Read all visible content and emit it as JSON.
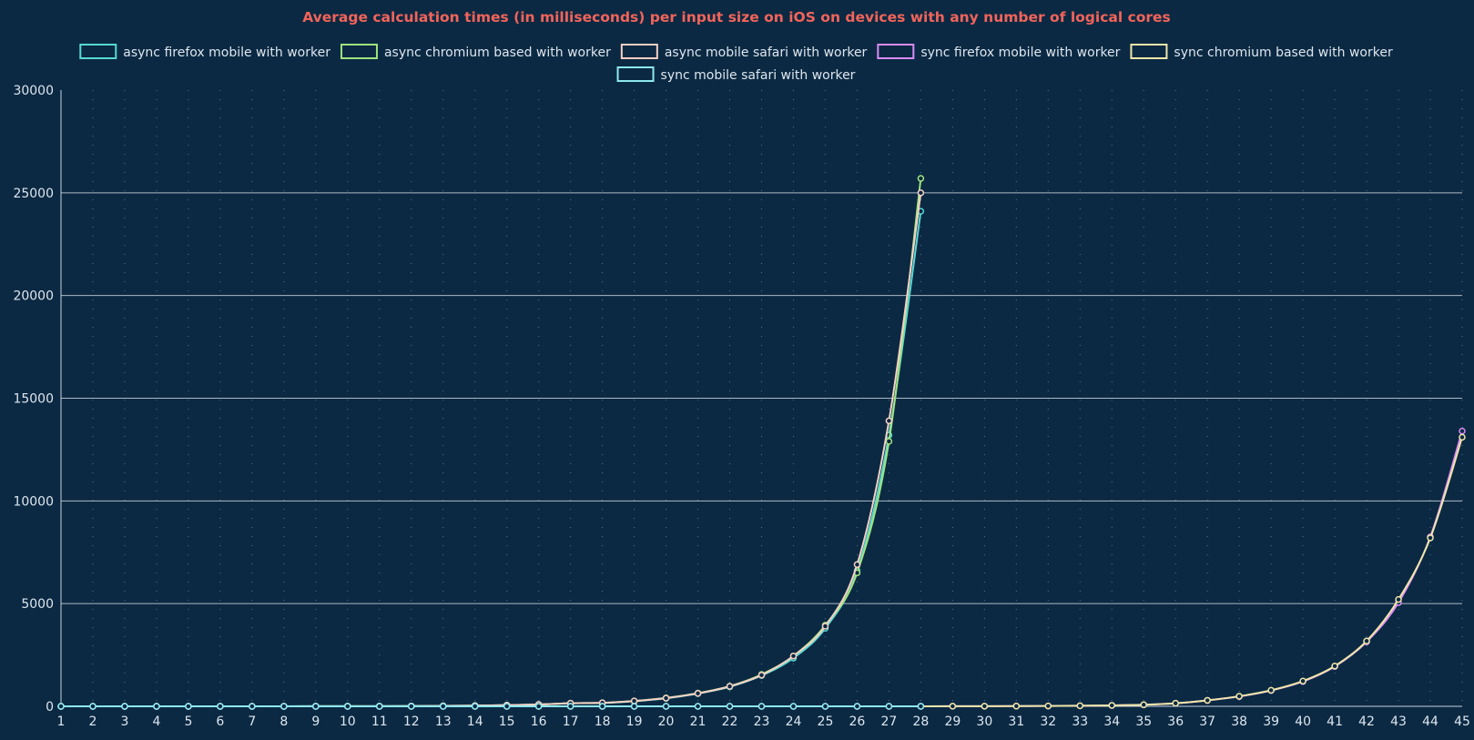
{
  "chart_data": {
    "type": "line",
    "title": "Average calculation times (in milliseconds) per input size on iOS on devices with any number of logical cores",
    "xlabel": "",
    "ylabel": "",
    "x": [
      1,
      2,
      3,
      4,
      5,
      6,
      7,
      8,
      9,
      10,
      11,
      12,
      13,
      14,
      15,
      16,
      17,
      18,
      19,
      20,
      21,
      22,
      23,
      24,
      25,
      26,
      27,
      28,
      29,
      30,
      31,
      32,
      33,
      34,
      35,
      36,
      37,
      38,
      39,
      40,
      41,
      42,
      43,
      44,
      45
    ],
    "ylim": [
      0,
      30000
    ],
    "yticks": [
      0,
      5000,
      10000,
      15000,
      20000,
      25000,
      30000
    ],
    "grid": "horizontal solid lines, dotted vertical lines",
    "legend_position": "top-center",
    "series": [
      {
        "name": "async firefox mobile with worker",
        "color": "#56d9d4",
        "x": [
          1,
          2,
          3,
          4,
          5,
          6,
          7,
          8,
          9,
          10,
          11,
          12,
          13,
          14,
          15,
          16,
          17,
          18,
          19,
          20,
          21,
          22,
          23,
          24,
          25,
          26,
          27,
          28
        ],
        "values": [
          0,
          0,
          0,
          0,
          0,
          1,
          1,
          2,
          3,
          5,
          8,
          13,
          21,
          34,
          55,
          89,
          150,
          160,
          250,
          390,
          620,
          950,
          1500,
          2350,
          3800,
          6600,
          13200,
          24100
        ]
      },
      {
        "name": "async chromium based with worker",
        "color": "#9ee37d",
        "x": [
          1,
          2,
          3,
          4,
          5,
          6,
          7,
          8,
          9,
          10,
          11,
          12,
          13,
          14,
          15,
          16,
          17,
          18,
          19,
          20,
          21,
          22,
          23,
          24,
          25,
          26,
          27,
          28
        ],
        "values": [
          0,
          0,
          0,
          0,
          0,
          1,
          1,
          2,
          3,
          5,
          8,
          13,
          21,
          34,
          55,
          89,
          150,
          170,
          260,
          410,
          640,
          980,
          1550,
          2450,
          3950,
          6500,
          12900,
          25700
        ]
      },
      {
        "name": "async mobile safari with worker",
        "color": "#f5d0c5",
        "x": [
          1,
          2,
          3,
          4,
          5,
          6,
          7,
          8,
          9,
          10,
          11,
          12,
          13,
          14,
          15,
          16,
          17,
          18,
          19,
          20,
          21,
          22,
          23,
          24,
          25,
          26,
          27,
          28
        ],
        "values": [
          0,
          0,
          0,
          0,
          0,
          1,
          1,
          2,
          3,
          5,
          8,
          13,
          21,
          34,
          55,
          89,
          150,
          170,
          260,
          400,
          630,
          970,
          1520,
          2450,
          3900,
          6900,
          13900,
          25000
        ]
      },
      {
        "name": "sync firefox mobile with worker",
        "color": "#d98cf5",
        "x": [
          1,
          2,
          3,
          4,
          5,
          6,
          7,
          8,
          9,
          10,
          11,
          12,
          13,
          14,
          15,
          16,
          17,
          18,
          19,
          20,
          21,
          22,
          23,
          24,
          25,
          26,
          27,
          28,
          29,
          30,
          31,
          32,
          33,
          34,
          35,
          36,
          37,
          38,
          39,
          40,
          41,
          42,
          43,
          44,
          45
        ],
        "values": [
          0,
          0,
          0,
          0,
          0,
          0,
          0,
          0,
          0,
          0,
          0,
          0,
          0,
          0,
          0,
          0,
          0,
          0,
          0,
          0,
          0,
          0,
          0,
          0,
          0,
          1,
          1,
          2,
          4,
          7,
          11,
          18,
          28,
          46,
          75,
          150,
          290,
          480,
          770,
          1210,
          1940,
          3140,
          5050,
          8250,
          13400
        ]
      },
      {
        "name": "sync chromium based with worker",
        "color": "#efe6a8",
        "x": [
          1,
          2,
          3,
          4,
          5,
          6,
          7,
          8,
          9,
          10,
          11,
          12,
          13,
          14,
          15,
          16,
          17,
          18,
          19,
          20,
          21,
          22,
          23,
          24,
          25,
          26,
          27,
          28,
          29,
          30,
          31,
          32,
          33,
          34,
          35,
          36,
          37,
          38,
          39,
          40,
          41,
          42,
          43,
          44,
          45
        ],
        "values": [
          0,
          0,
          0,
          0,
          0,
          0,
          0,
          0,
          0,
          0,
          0,
          0,
          0,
          0,
          0,
          0,
          0,
          0,
          0,
          0,
          0,
          0,
          0,
          0,
          0,
          1,
          1,
          2,
          4,
          7,
          11,
          18,
          28,
          46,
          75,
          150,
          290,
          490,
          780,
          1230,
          1960,
          3180,
          5200,
          8200,
          13100
        ]
      },
      {
        "name": "sync mobile safari with worker",
        "color": "#8ee8f0",
        "x": [
          1,
          2,
          3,
          4,
          5,
          6,
          7,
          8,
          9,
          10,
          11,
          12,
          13,
          14,
          15,
          16,
          17,
          18,
          19,
          20,
          21,
          22,
          23,
          24,
          25,
          26,
          27,
          28
        ],
        "values": [
          0,
          0,
          0,
          0,
          0,
          0,
          0,
          0,
          0,
          0,
          0,
          0,
          0,
          0,
          0,
          0,
          0,
          0,
          0,
          0,
          0,
          0,
          0,
          0,
          0,
          0,
          0,
          0
        ]
      }
    ]
  },
  "colors": {
    "background": "#0b2943",
    "title": "#f2645a",
    "text": "#dde6ee",
    "grid": "#c9d3dc"
  }
}
